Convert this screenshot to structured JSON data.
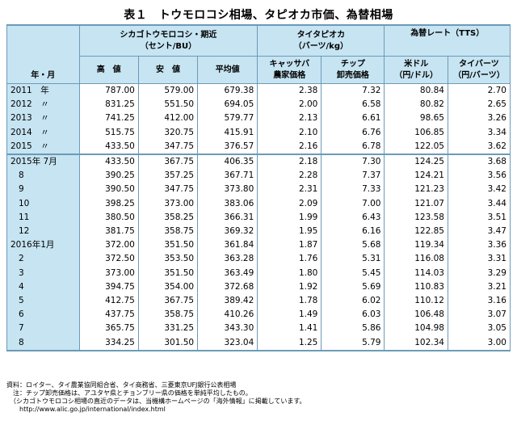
{
  "title": "表１　トウモロコシ相場、タピオカ市価、為替相場",
  "header": {
    "year_month": "年・月",
    "corn_group": "シカゴトウモロコシ・期近\n（セント/BU）",
    "tapioca_group": "タイタピオカ\n（バーツ/kg）",
    "fx_group": "為替レート（TTS）",
    "high": "高　値",
    "low": "安　値",
    "avg": "平均値",
    "cassava": "キャッサバ\n農家価格",
    "chip": "チップ\n卸売価格",
    "usd": "米ドル\n（円/ドル）",
    "thb": "タイバーツ\n（円/バーツ）"
  },
  "rows": [
    {
      "label": "2011　年",
      "high": "787.00",
      "low": "579.00",
      "avg": "679.38",
      "cassava": "2.38",
      "chip": "7.32",
      "usd": "80.84",
      "thb": "2.70"
    },
    {
      "label": "2012　〃",
      "high": "831.25",
      "low": "551.50",
      "avg": "694.05",
      "cassava": "2.00",
      "chip": "6.58",
      "usd": "80.82",
      "thb": "2.65"
    },
    {
      "label": "2013　〃",
      "high": "741.25",
      "low": "412.00",
      "avg": "579.77",
      "cassava": "2.13",
      "chip": "6.61",
      "usd": "98.65",
      "thb": "3.26"
    },
    {
      "label": "2014　〃",
      "high": "515.75",
      "low": "320.75",
      "avg": "415.91",
      "cassava": "2.10",
      "chip": "6.76",
      "usd": "106.85",
      "thb": "3.34"
    },
    {
      "label": "2015　〃",
      "high": "433.50",
      "low": "347.75",
      "avg": "376.57",
      "cassava": "2.16",
      "chip": "6.78",
      "usd": "122.05",
      "thb": "3.62"
    },
    {
      "label": "2015年 7月",
      "high": "433.50",
      "low": "367.75",
      "avg": "406.35",
      "cassava": "2.18",
      "chip": "7.30",
      "usd": "124.25",
      "thb": "3.68"
    },
    {
      "label": "8",
      "high": "390.25",
      "low": "357.25",
      "avg": "367.71",
      "cassava": "2.28",
      "chip": "7.37",
      "usd": "124.21",
      "thb": "3.56"
    },
    {
      "label": "9",
      "high": "390.50",
      "low": "347.75",
      "avg": "373.80",
      "cassava": "2.31",
      "chip": "7.33",
      "usd": "121.23",
      "thb": "3.42"
    },
    {
      "label": "10",
      "high": "398.25",
      "low": "373.00",
      "avg": "383.06",
      "cassava": "2.09",
      "chip": "7.00",
      "usd": "121.07",
      "thb": "3.44"
    },
    {
      "label": "11",
      "high": "380.50",
      "low": "358.25",
      "avg": "366.31",
      "cassava": "1.99",
      "chip": "6.43",
      "usd": "123.58",
      "thb": "3.51"
    },
    {
      "label": "12",
      "high": "381.75",
      "low": "358.75",
      "avg": "369.32",
      "cassava": "1.95",
      "chip": "6.16",
      "usd": "122.85",
      "thb": "3.47"
    },
    {
      "label": "2016年1月",
      "high": "372.00",
      "low": "351.50",
      "avg": "361.84",
      "cassava": "1.87",
      "chip": "5.68",
      "usd": "119.34",
      "thb": "3.36"
    },
    {
      "label": "2",
      "high": "372.50",
      "low": "353.50",
      "avg": "363.28",
      "cassava": "1.76",
      "chip": "5.31",
      "usd": "116.08",
      "thb": "3.31"
    },
    {
      "label": "3",
      "high": "373.00",
      "low": "351.50",
      "avg": "363.49",
      "cassava": "1.80",
      "chip": "5.45",
      "usd": "114.03",
      "thb": "3.29"
    },
    {
      "label": "4",
      "high": "394.75",
      "low": "354.00",
      "avg": "372.68",
      "cassava": "1.92",
      "chip": "5.69",
      "usd": "110.83",
      "thb": "3.21"
    },
    {
      "label": "5",
      "high": "412.75",
      "low": "367.75",
      "avg": "389.42",
      "cassava": "1.78",
      "chip": "6.02",
      "usd": "110.12",
      "thb": "3.16"
    },
    {
      "label": "6",
      "high": "437.75",
      "low": "358.75",
      "avg": "410.26",
      "cassava": "1.49",
      "chip": "6.03",
      "usd": "106.48",
      "thb": "3.07"
    },
    {
      "label": "7",
      "high": "365.75",
      "low": "331.25",
      "avg": "343.30",
      "cassava": "1.41",
      "chip": "5.86",
      "usd": "104.98",
      "thb": "3.05"
    },
    {
      "label": "8",
      "high": "334.25",
      "low": "301.50",
      "avg": "323.04",
      "cassava": "1.25",
      "chip": "5.79",
      "usd": "102.34",
      "thb": "3.00"
    }
  ],
  "notes": {
    "source": "資料：ロイター、タイ農業協同組合省、タイ商務省、三菱東京UFJ銀行公表相場",
    "note1": "　注：チップ卸売価格は、アユタヤ県とチョンブリー県の価格を単純平均したもの。",
    "note2": "　（シカゴトウモロコシ相場の直近のデータは、当機構ホームページの「海外情報」に掲載しています。",
    "note3": "　　http://www.alic.go.jp/international/index.html"
  }
}
